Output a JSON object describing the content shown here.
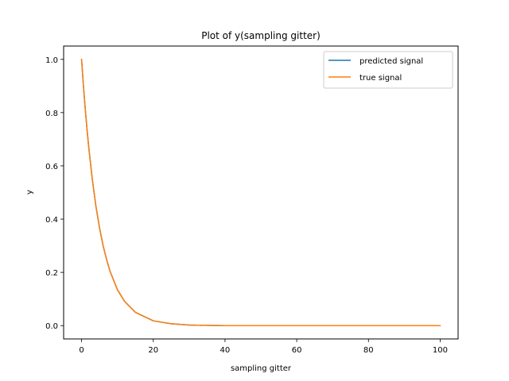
{
  "chart_data": {
    "type": "line",
    "title": "Plot of y(sampling gitter)",
    "xlabel": "sampling gitter",
    "ylabel": "y",
    "xlim": [
      -5,
      105
    ],
    "ylim": [
      -0.05,
      1.05
    ],
    "xticks": [
      0,
      20,
      40,
      60,
      80,
      100
    ],
    "xtick_labels": [
      "0",
      "20",
      "40",
      "60",
      "80",
      "100"
    ],
    "yticks": [
      0.0,
      0.2,
      0.4,
      0.6,
      0.8,
      1.0
    ],
    "ytick_labels": [
      "0.0",
      "0.2",
      "0.4",
      "0.6",
      "0.8",
      "1.0"
    ],
    "grid": false,
    "legend_position": "top-right",
    "series": [
      {
        "name": "predicted signal",
        "color": "#1f77b4",
        "x": [
          0,
          0.5,
          1,
          1.5,
          2,
          3,
          4,
          5,
          6,
          7,
          8,
          10,
          12,
          15,
          20,
          25,
          30,
          40,
          50,
          60,
          70,
          80,
          90,
          100
        ],
        "y": [
          1.0,
          0.905,
          0.819,
          0.741,
          0.67,
          0.549,
          0.449,
          0.368,
          0.301,
          0.247,
          0.202,
          0.135,
          0.091,
          0.05,
          0.018,
          0.007,
          0.002,
          0.0,
          0.0,
          0.0,
          0.0,
          0.0,
          0.0,
          0.0
        ]
      },
      {
        "name": "true signal",
        "color": "#ff7f0e",
        "x": [
          0,
          0.5,
          1,
          1.5,
          2,
          3,
          4,
          5,
          6,
          7,
          8,
          10,
          12,
          15,
          20,
          25,
          30,
          40,
          50,
          60,
          70,
          80,
          90,
          100
        ],
        "y": [
          1.0,
          0.905,
          0.819,
          0.741,
          0.67,
          0.549,
          0.449,
          0.368,
          0.301,
          0.247,
          0.202,
          0.135,
          0.091,
          0.05,
          0.018,
          0.007,
          0.002,
          0.0,
          0.0,
          0.0,
          0.0,
          0.0,
          0.0,
          0.0
        ]
      }
    ]
  }
}
